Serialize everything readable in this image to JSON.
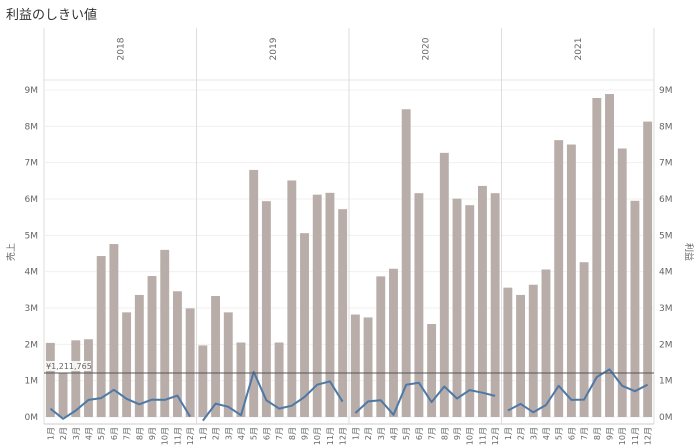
{
  "title": "利益のしきい値",
  "chart_data": {
    "type": "bar+line",
    "title": "利益のしきい値",
    "year_panels": [
      "2018",
      "2019",
      "2020",
      "2021"
    ],
    "months": [
      "1月",
      "2月",
      "3月",
      "4月",
      "5月",
      "6月",
      "7月",
      "8月",
      "9月",
      "10月",
      "11月",
      "12月"
    ],
    "left_axis": {
      "label": "売上",
      "range": [
        0,
        9400000
      ],
      "tick_values": [
        0,
        1000000,
        2000000,
        3000000,
        4000000,
        5000000,
        6000000,
        7000000,
        8000000,
        9000000
      ],
      "tick_labels": [
        "0M",
        "1M",
        "2M",
        "3M",
        "4M",
        "5M",
        "6M",
        "7M",
        "8M",
        "9M"
      ]
    },
    "right_axis": {
      "label": "利益",
      "tick_labels": [
        "0M",
        "1M",
        "2M",
        "3M",
        "4M",
        "5M",
        "6M",
        "7M",
        "8M",
        "9M"
      ]
    },
    "threshold": {
      "value": 1211765,
      "label": "¥1,211,765"
    },
    "series": [
      {
        "name": "売上",
        "type": "bar",
        "values": [
          [
            2040000,
            1200000,
            2110000,
            2140000,
            4430000,
            4760000,
            2880000,
            3360000,
            3880000,
            4600000,
            3460000,
            2990000
          ],
          [
            1970000,
            3330000,
            2880000,
            2050000,
            6800000,
            5940000,
            2050000,
            6510000,
            5060000,
            6120000,
            6170000,
            5720000
          ],
          [
            2820000,
            2740000,
            3870000,
            4080000,
            8470000,
            6160000,
            2560000,
            7270000,
            6010000,
            5830000,
            6360000,
            6160000
          ],
          [
            3560000,
            3360000,
            3640000,
            4060000,
            7620000,
            7500000,
            4260000,
            8780000,
            8890000,
            7390000,
            5950000,
            8130000
          ]
        ]
      },
      {
        "name": "利益",
        "type": "line",
        "values": [
          [
            230000,
            -50000,
            180000,
            470000,
            520000,
            750000,
            500000,
            350000,
            480000,
            470000,
            590000,
            10000
          ],
          [
            -100000,
            370000,
            280000,
            50000,
            1240000,
            460000,
            230000,
            310000,
            550000,
            890000,
            980000,
            420000
          ],
          [
            110000,
            430000,
            460000,
            60000,
            890000,
            940000,
            410000,
            840000,
            510000,
            740000,
            670000,
            580000
          ],
          [
            180000,
            360000,
            130000,
            330000,
            860000,
            470000,
            480000,
            1100000,
            1310000,
            860000,
            710000,
            890000
          ]
        ]
      }
    ],
    "colors": {
      "bar": "#b8ada8",
      "line": "#4e79a7",
      "threshold": "#555555"
    }
  }
}
